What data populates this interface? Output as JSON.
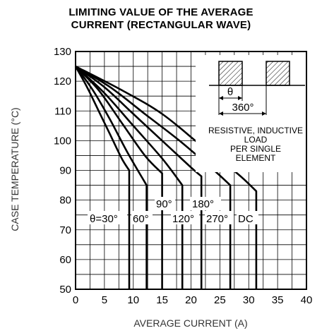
{
  "chart_data": {
    "type": "line",
    "title_lines": [
      "LIMITING VALUE OF THE AVERAGE",
      "CURRENT (RECTANGULAR WAVE)"
    ],
    "xlabel": "AVERAGE CURRENT (A)",
    "ylabel": "CASE TEMPERATURE (°C)",
    "xlim": [
      0,
      40
    ],
    "ylim": [
      50,
      130
    ],
    "x_ticks": [
      0,
      5,
      10,
      15,
      20,
      25,
      30,
      35,
      40
    ],
    "y_ticks": [
      50,
      60,
      70,
      80,
      90,
      100,
      110,
      120,
      130
    ],
    "x_tick_labels": [
      "0",
      "5",
      "10",
      "15",
      "20",
      "25",
      "30",
      "35",
      "40"
    ],
    "y_tick_labels": [
      "50",
      "60",
      "70",
      "80",
      "90",
      "100",
      "110",
      "120",
      "130"
    ],
    "grid": true,
    "series": [
      {
        "name": "θ=30°",
        "points": [
          [
            0,
            125
          ],
          [
            2,
            118
          ],
          [
            4,
            110
          ],
          [
            6,
            102
          ],
          [
            8,
            94
          ],
          [
            9.3,
            90
          ],
          [
            9.3,
            50
          ]
        ]
      },
      {
        "name": "60°",
        "points": [
          [
            0,
            125
          ],
          [
            3,
            117
          ],
          [
            6,
            107
          ],
          [
            9,
            96
          ],
          [
            12.3,
            85
          ],
          [
            12.3,
            50
          ]
        ]
      },
      {
        "name": "90°",
        "points": [
          [
            0,
            125
          ],
          [
            4,
            117
          ],
          [
            8,
            106
          ],
          [
            12,
            95
          ],
          [
            15,
            89
          ],
          [
            15,
            50
          ]
        ]
      },
      {
        "name": "120°",
        "points": [
          [
            0,
            125
          ],
          [
            5,
            116
          ],
          [
            10,
            105
          ],
          [
            15,
            94
          ],
          [
            18.5,
            85
          ],
          [
            18.5,
            50
          ]
        ]
      },
      {
        "name": "180°",
        "points": [
          [
            0,
            125
          ],
          [
            5,
            118
          ],
          [
            10,
            109
          ],
          [
            15,
            100
          ],
          [
            20,
            91
          ],
          [
            21.8,
            88
          ],
          [
            21.8,
            50
          ]
        ]
      },
      {
        "name": "270°",
        "points": [
          [
            0,
            125
          ],
          [
            6,
            118
          ],
          [
            12,
            109
          ],
          [
            18,
            100
          ],
          [
            24,
            90
          ],
          [
            26.8,
            85
          ],
          [
            26.8,
            50
          ]
        ]
      },
      {
        "name": "DC",
        "points": [
          [
            0,
            125
          ],
          [
            8,
            117
          ],
          [
            15,
            109
          ],
          [
            22,
            98
          ],
          [
            28,
            89
          ],
          [
            31.3,
            83
          ],
          [
            31.3,
            50
          ]
        ]
      }
    ],
    "inset": {
      "theta_label": "θ",
      "period_label": "360°",
      "note_lines": [
        "RESISTIVE, INDUCTIVE",
        "LOAD",
        "PER SINGLE",
        "ELEMENT"
      ]
    }
  }
}
